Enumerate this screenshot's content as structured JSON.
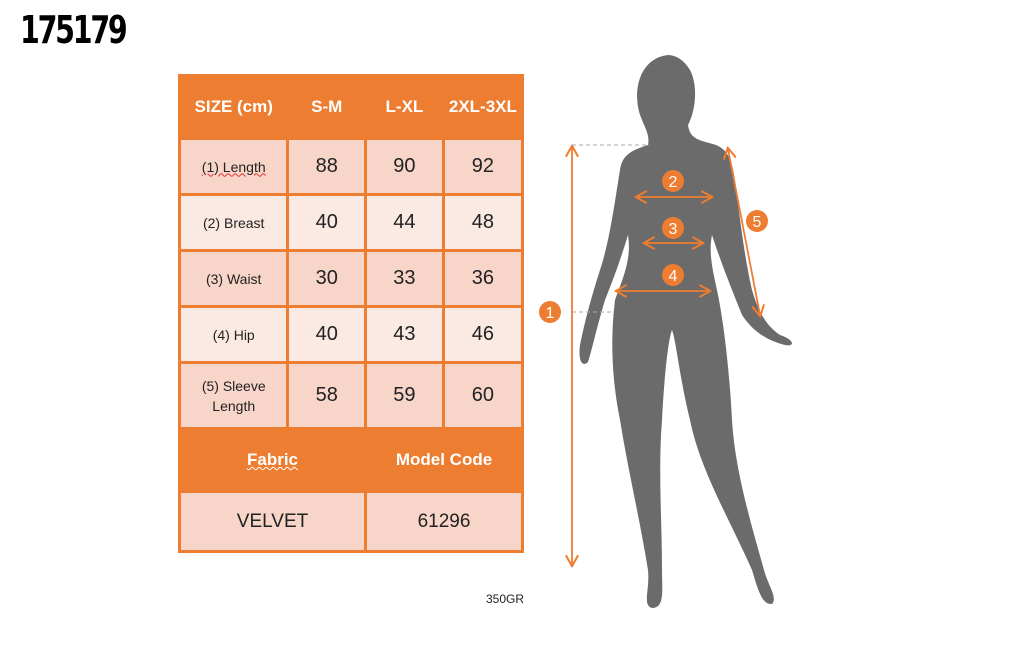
{
  "product_code": "175179",
  "table": {
    "header": [
      "SIZE (cm)",
      "S-M",
      "L-XL",
      "2XL-3XL"
    ],
    "rows": [
      {
        "label": "(1) Length",
        "values": [
          "88",
          "90",
          "92"
        ]
      },
      {
        "label": "(2) Breast",
        "values": [
          "40",
          "44",
          "48"
        ]
      },
      {
        "label": "(3) Waist",
        "values": [
          "30",
          "33",
          "36"
        ]
      },
      {
        "label": "(4) Hip",
        "values": [
          "40",
          "43",
          "46"
        ]
      },
      {
        "label": "(5) Sleeve Length",
        "values": [
          "58",
          "59",
          "60"
        ]
      }
    ],
    "footer_header": [
      "Fabric",
      "Model Code"
    ],
    "footer_values": [
      "VELVET",
      "61296"
    ]
  },
  "weight_note": "350GR",
  "markers": [
    "1",
    "2",
    "3",
    "4",
    "5"
  ],
  "colors": {
    "accent": "#ED7D31",
    "row_dark": "#F8D5C9",
    "row_light": "#FBE9E3",
    "silhouette": "#6b6b6b"
  }
}
